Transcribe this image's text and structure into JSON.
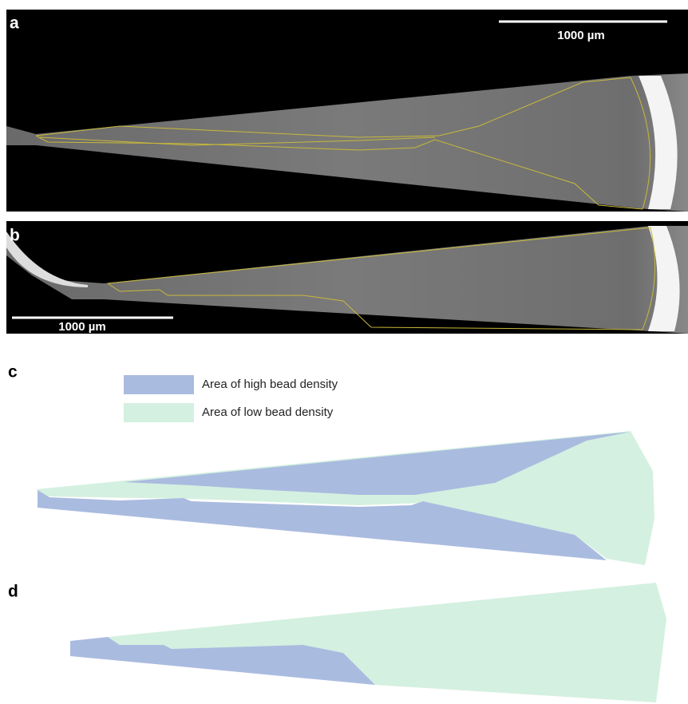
{
  "panels": [
    {
      "label": "a",
      "scale_bar": "1000 µm"
    },
    {
      "label": "b",
      "scale_bar": "1000 µm"
    },
    {
      "label": "c"
    },
    {
      "label": "d"
    }
  ],
  "legend": [
    {
      "label": "Area of high bead density",
      "color": "#aabbe0"
    },
    {
      "label": "Area of low bead density",
      "color": "#d4f0e0"
    }
  ]
}
